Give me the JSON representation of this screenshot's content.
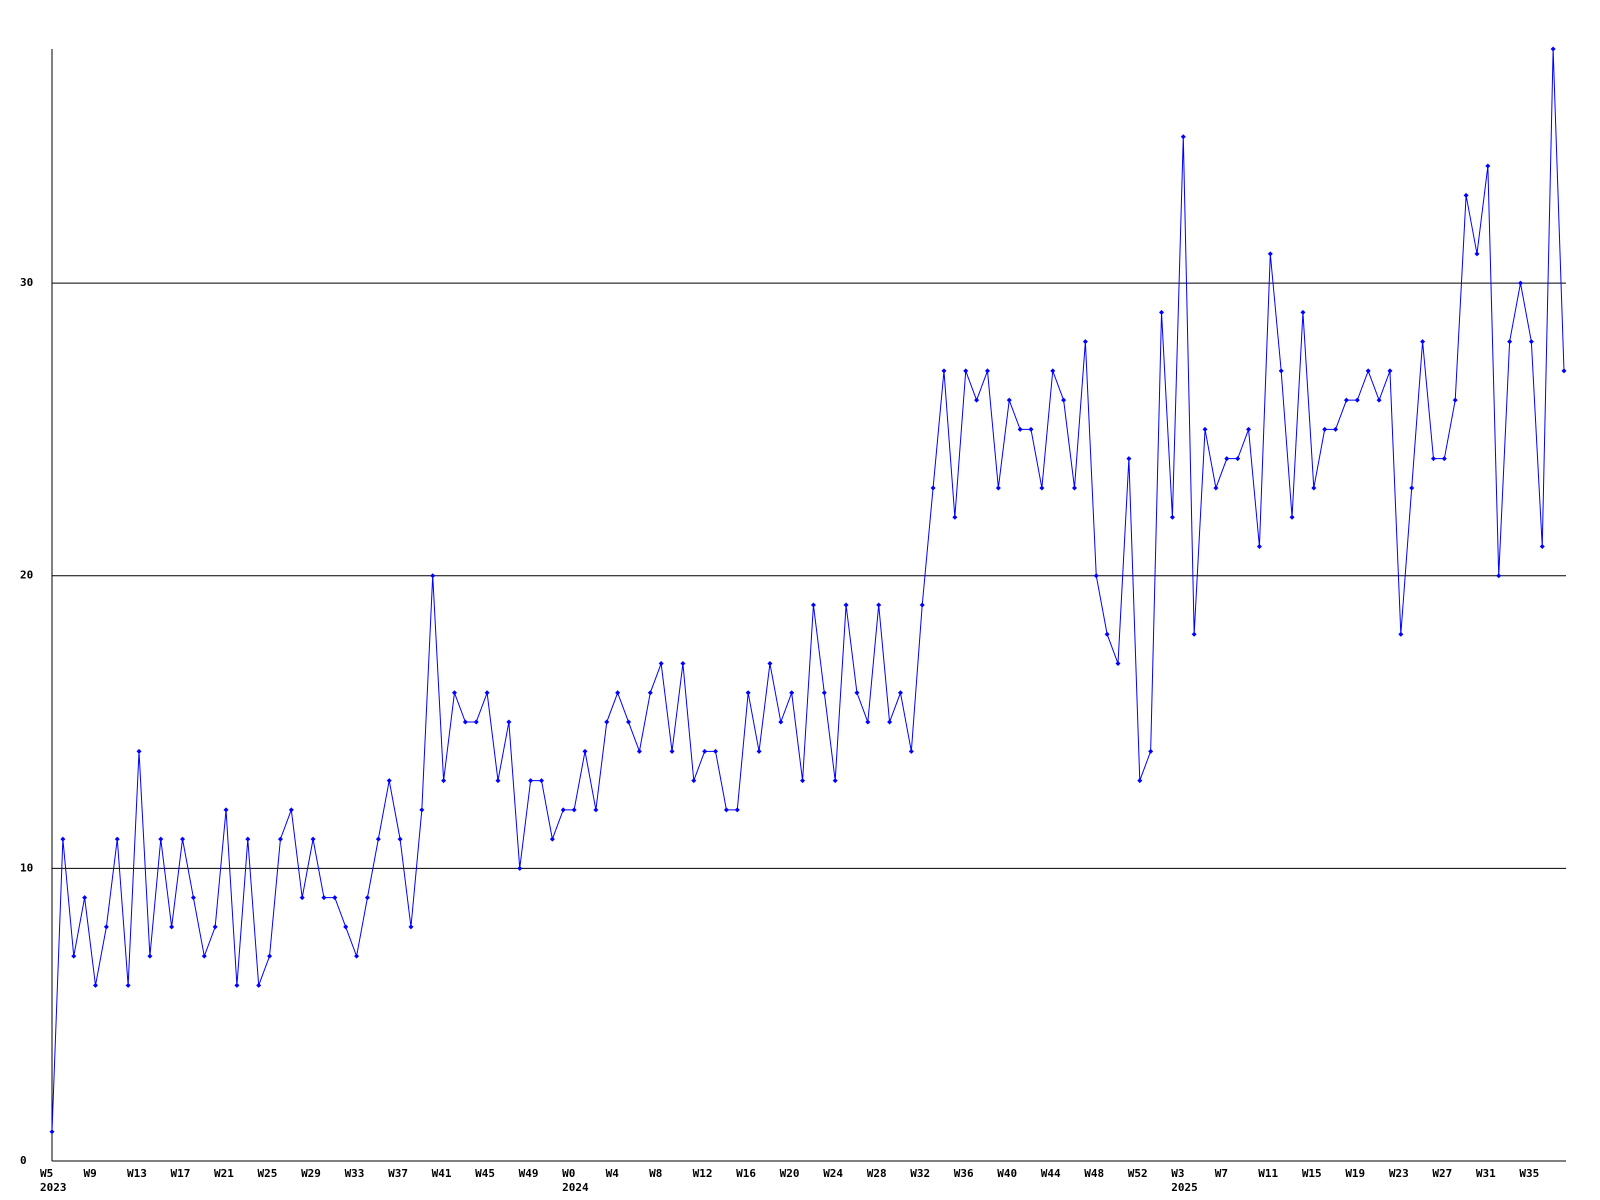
{
  "chart_data": {
    "type": "line",
    "color": "#0000ff",
    "grid": true,
    "marker": "diamond",
    "ylim": [
      0,
      38
    ],
    "yticks": [
      0,
      10,
      20,
      30
    ],
    "categories": [
      "W5",
      null,
      null,
      null,
      "W9",
      null,
      null,
      null,
      "W13",
      null,
      null,
      null,
      "W17",
      null,
      null,
      null,
      "W21",
      null,
      null,
      null,
      "W25",
      null,
      null,
      null,
      "W29",
      null,
      null,
      null,
      "W33",
      null,
      null,
      null,
      "W37",
      null,
      null,
      null,
      "W41",
      null,
      null,
      null,
      "W45",
      null,
      null,
      null,
      "W49",
      null,
      null,
      null,
      "W0",
      null,
      null,
      null,
      "W4",
      null,
      null,
      null,
      "W8",
      null,
      null,
      null,
      "W12",
      null,
      null,
      null,
      "W16",
      null,
      null,
      null,
      "W20",
      null,
      null,
      null,
      "W24",
      null,
      null,
      null,
      "W28",
      null,
      null,
      null,
      "W32",
      null,
      null,
      null,
      "W36",
      null,
      null,
      null,
      "W40",
      null,
      null,
      null,
      "W44",
      null,
      null,
      null,
      "W48",
      null,
      null,
      null,
      "W52",
      null,
      null,
      null,
      "W3",
      null,
      null,
      null,
      "W7",
      null,
      null,
      null,
      "W11",
      null,
      null,
      null,
      "W15",
      null,
      null,
      null,
      "W19",
      null,
      null,
      null,
      "W23",
      null,
      null,
      null,
      "W27",
      null,
      null,
      null,
      "W31",
      null,
      null,
      null,
      "W35",
      null,
      null,
      null
    ],
    "years": [
      "2023",
      null,
      null,
      null,
      null,
      null,
      null,
      null,
      null,
      null,
      null,
      null,
      null,
      null,
      null,
      null,
      null,
      null,
      null,
      null,
      null,
      null,
      null,
      null,
      null,
      null,
      null,
      null,
      null,
      null,
      null,
      null,
      null,
      null,
      null,
      null,
      null,
      null,
      null,
      null,
      null,
      null,
      null,
      null,
      null,
      null,
      null,
      null,
      "2024",
      null,
      null,
      null,
      null,
      null,
      null,
      null,
      null,
      null,
      null,
      null,
      null,
      null,
      null,
      null,
      null,
      null,
      null,
      null,
      null,
      null,
      null,
      null,
      null,
      null,
      null,
      null,
      null,
      null,
      null,
      null,
      null,
      null,
      null,
      null,
      null,
      null,
      null,
      null,
      null,
      null,
      null,
      null,
      null,
      null,
      null,
      null,
      null,
      null,
      null,
      null,
      null,
      null,
      null,
      null,
      "2025",
      null,
      null,
      null,
      null,
      null,
      null,
      null,
      null,
      null,
      null,
      null,
      null,
      null,
      null,
      null,
      null,
      null,
      null,
      null,
      null,
      null,
      null,
      null,
      null,
      null,
      null,
      null,
      null,
      null,
      null,
      null,
      null,
      null,
      null,
      null
    ],
    "values": [
      1,
      11,
      7,
      9,
      6,
      8,
      11,
      6,
      14,
      7,
      11,
      8,
      11,
      9,
      7,
      8,
      12,
      6,
      11,
      6,
      7,
      11,
      12,
      9,
      11,
      9,
      9,
      8,
      7,
      9,
      11,
      13,
      11,
      8,
      12,
      20,
      13,
      16,
      15,
      15,
      16,
      13,
      15,
      10,
      13,
      13,
      11,
      12,
      12,
      14,
      12,
      15,
      16,
      15,
      14,
      16,
      17,
      14,
      17,
      13,
      14,
      14,
      12,
      12,
      16,
      14,
      17,
      15,
      16,
      13,
      19,
      16,
      13,
      19,
      16,
      15,
      19,
      15,
      16,
      14,
      19,
      23,
      27,
      22,
      27,
      26,
      27,
      23,
      26,
      25,
      25,
      23,
      27,
      26,
      23,
      28,
      20,
      18,
      17,
      24,
      13,
      14,
      29,
      22,
      35,
      18,
      25,
      23,
      24,
      24,
      25,
      21,
      31,
      27,
      22,
      29,
      23,
      25,
      25,
      26,
      26,
      27,
      26,
      27,
      18,
      23,
      28,
      24,
      24,
      26,
      33,
      31,
      34,
      20,
      28,
      30,
      28,
      21,
      38,
      27
    ]
  }
}
